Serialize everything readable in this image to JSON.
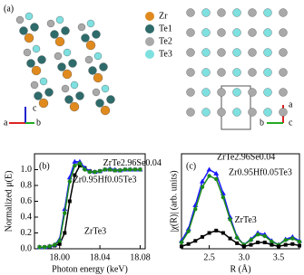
{
  "structure": {
    "label": "(a)",
    "legend": [
      {
        "name": "Zr",
        "color": "#e08a1e"
      },
      {
        "name": "Te1",
        "color": "#2f6b6b"
      },
      {
        "name": "Te2",
        "color": "#a9a9a9"
      },
      {
        "name": "Te3",
        "color": "#7fe0e0"
      }
    ],
    "left_axes": [
      "c",
      "a",
      "b"
    ],
    "right_axes": [
      "a",
      "b",
      "c"
    ]
  },
  "chart_data": [
    {
      "type": "line",
      "label": "(b)",
      "y_label": "Normalized μ(E)",
      "x_label": "Photon energy (keV)",
      "x": [
        17.98,
        17.985,
        17.99,
        17.995,
        18.0,
        18.005,
        18.01,
        18.015,
        18.02,
        18.025,
        18.03,
        18.035,
        18.04,
        18.045,
        18.05,
        18.055,
        18.06,
        18.065,
        18.07,
        18.075,
        18.08
      ],
      "xlim": [
        17.975,
        18.085
      ],
      "ylim": [
        0,
        1.2
      ],
      "xticks": [
        {
          "value": 18.0,
          "label": "18.00"
        },
        {
          "value": 18.04,
          "label": "18.04"
        },
        {
          "value": 18.08,
          "label": "18.08"
        }
      ],
      "yticks": [
        {
          "value": 0,
          "label": "0.0"
        },
        0.2,
        0.4,
        0.6,
        0.8,
        {
          "value": 1,
          "label": "1.0"
        }
      ],
      "series": [
        {
          "name": "ZrTe3",
          "color": "#000000",
          "values": [
            0.02,
            0.02,
            0.03,
            0.04,
            0.06,
            0.2,
            0.6,
            0.93,
            1.05,
            1.02,
            0.98,
            0.97,
            0.98,
            1.0,
            1.0,
            0.99,
            0.99,
            1.0,
            1.0,
            1.0,
            1.0
          ]
        },
        {
          "name": "ZrTe2.96Se0.04",
          "color": "#1a1aff",
          "values": [
            0.02,
            0.02,
            0.03,
            0.05,
            0.12,
            0.5,
            0.9,
            1.1,
            1.1,
            1.02,
            0.98,
            0.97,
            0.98,
            1.0,
            1.01,
            1.0,
            0.99,
            1.0,
            1.0,
            1.0,
            1.0
          ]
        },
        {
          "name": "Zr0.95Hf0.05Te3",
          "color": "#1a8a1a",
          "values": [
            0.02,
            0.02,
            0.03,
            0.05,
            0.1,
            0.45,
            0.85,
            1.05,
            1.08,
            1.0,
            0.97,
            0.97,
            0.98,
            1.0,
            1.0,
            0.99,
            0.99,
            1.0,
            1.0,
            1.0,
            1.0
          ]
        }
      ]
    },
    {
      "type": "line",
      "label": "(c)",
      "y_label": "|χ(R)| (arb. units)",
      "x_label": "R (Å)",
      "x": [
        2.1,
        2.2,
        2.3,
        2.4,
        2.5,
        2.6,
        2.7,
        2.8,
        2.9,
        3.0,
        3.1,
        3.2,
        3.3,
        3.4,
        3.5,
        3.6,
        3.7,
        3.8
      ],
      "xlim": [
        2.1,
        3.8
      ],
      "ylim": [
        0,
        1.2
      ],
      "xticks": [
        2.5,
        {
          "value": 3,
          "label": "3.0"
        },
        3.5
      ],
      "series": [
        {
          "name": "ZrTe2.96Se0.04",
          "color": "#1a1aff",
          "values": [
            0.1,
            0.25,
            0.55,
            0.85,
            1.0,
            0.95,
            0.7,
            0.4,
            0.15,
            0.05,
            0.12,
            0.2,
            0.18,
            0.1,
            0.05,
            0.12,
            0.15,
            0.1
          ]
        },
        {
          "name": "Zr0.95Hf0.05Te3",
          "color": "#1a8a1a",
          "values": [
            0.08,
            0.22,
            0.5,
            0.78,
            0.92,
            0.88,
            0.65,
            0.37,
            0.14,
            0.05,
            0.11,
            0.18,
            0.16,
            0.09,
            0.05,
            0.11,
            0.13,
            0.09
          ]
        },
        {
          "name": "ZrTe3",
          "color": "#000000",
          "values": [
            0.03,
            0.06,
            0.1,
            0.15,
            0.2,
            0.23,
            0.2,
            0.13,
            0.07,
            0.03,
            0.05,
            0.08,
            0.08,
            0.05,
            0.03,
            0.05,
            0.06,
            0.04
          ]
        }
      ]
    }
  ]
}
